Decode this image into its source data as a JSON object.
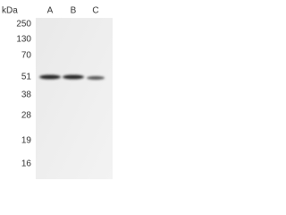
{
  "header": {
    "unit": "kDa",
    "lanes": [
      "A",
      "B",
      "C"
    ]
  },
  "markers": [
    "250",
    "130",
    "70",
    "51",
    "38",
    "28",
    "19",
    "16"
  ]
}
